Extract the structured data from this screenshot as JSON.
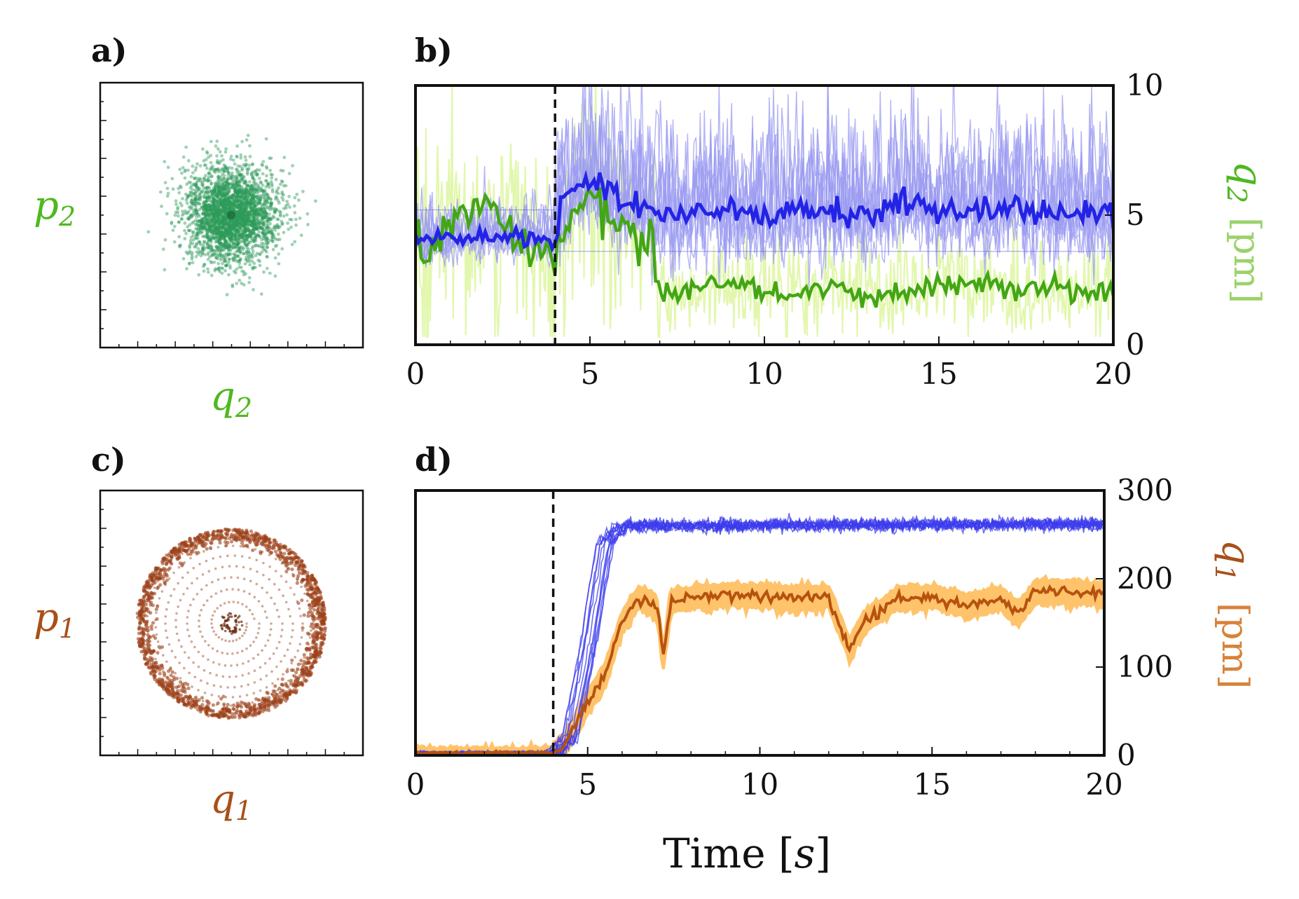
{
  "chart_data": [
    {
      "panel": "a)",
      "type": "scatter",
      "title": "",
      "xlabel": "q2",
      "ylabel": "p2",
      "description_points": "gaussian cloud centered at origin",
      "colors": {
        "points": "#2e9a5a",
        "label": "#4fb81f"
      }
    },
    {
      "panel": "b)",
      "type": "line",
      "title": "",
      "xlabel": "",
      "ylabel": "q2 [pm]",
      "xlim": [
        0,
        20
      ],
      "ylim": [
        0,
        10
      ],
      "xticks": [
        "0",
        "5",
        "10",
        "15",
        "20"
      ],
      "yticks": [
        "0",
        "5",
        "10"
      ],
      "switch_time": 4,
      "series": [
        {
          "name": "blue mean",
          "color": "#2323e6",
          "x": [
            0,
            1,
            2,
            3,
            4,
            4.2,
            5,
            6,
            6.8,
            7,
            8,
            9,
            10,
            11,
            12,
            13,
            14,
            15,
            16,
            17,
            18,
            19,
            20
          ],
          "values": [
            4.0,
            4.1,
            4.2,
            4.1,
            4.0,
            5.8,
            6.4,
            5.6,
            5.2,
            5.0,
            5.1,
            5.3,
            5.0,
            5.2,
            5.1,
            5.0,
            5.6,
            5.2,
            5.1,
            5.3,
            5.2,
            5.0,
            5.1
          ]
        },
        {
          "name": "green mean",
          "color": "#43a614",
          "x": [
            0,
            1,
            2,
            3,
            4,
            4.2,
            5,
            5.5,
            6,
            6.5,
            6.8,
            7,
            8,
            9,
            10,
            11,
            12,
            13,
            14,
            15,
            16,
            17,
            18,
            19,
            20
          ],
          "values": [
            3.5,
            4.5,
            5.5,
            3.8,
            3.3,
            4.2,
            5.8,
            5.0,
            4.4,
            4.0,
            4.6,
            1.9,
            2.1,
            2.3,
            2.1,
            2.0,
            2.2,
            1.9,
            2.1,
            2.3,
            2.4,
            2.1,
            2.2,
            2.0,
            2.0
          ]
        },
        {
          "name": "blue trajectories",
          "color": "#9b9bf2"
        },
        {
          "name": "green raw",
          "color": "#e2f7ad"
        }
      ]
    },
    {
      "panel": "c)",
      "type": "scatter",
      "title": "",
      "xlabel": "q1",
      "ylabel": "p1",
      "description_points": "spiral converging to a ring (limit cycle)",
      "colors": {
        "points": "#9c4119",
        "label": "#a8501a"
      }
    },
    {
      "panel": "d)",
      "type": "line",
      "title": "",
      "xlabel": "Time [s]",
      "ylabel": "q1 [pm]",
      "xlim": [
        0,
        20
      ],
      "ylim": [
        0,
        300
      ],
      "xticks": [
        "0",
        "5",
        "10",
        "15",
        "20"
      ],
      "yticks": [
        "0",
        "100",
        "200",
        "300"
      ],
      "switch_time": 4,
      "series": [
        {
          "name": "blue trajectories",
          "color": "#3c3cee",
          "x": [
            0,
            4,
            4.5,
            5,
            5.5,
            6,
            20
          ],
          "values": [
            3,
            3,
            20,
            120,
            240,
            260,
            262
          ]
        },
        {
          "name": "orange mean",
          "color": "#b6520f",
          "x": [
            0,
            4,
            4.3,
            5,
            5.5,
            6,
            6.5,
            7,
            7.2,
            7.4,
            8,
            9,
            10,
            11,
            12,
            12.6,
            13,
            14,
            15,
            16,
            17,
            17.5,
            18,
            19,
            20
          ],
          "values": [
            3,
            3,
            10,
            60,
            90,
            150,
            180,
            170,
            110,
            175,
            178,
            182,
            180,
            178,
            180,
            120,
            150,
            178,
            180,
            170,
            178,
            160,
            185,
            186,
            182
          ]
        },
        {
          "name": "orange band",
          "color": "#ffc36b"
        }
      ]
    }
  ],
  "labels": {
    "panel_a": "a)",
    "panel_b": "b)",
    "panel_c": "c)",
    "panel_d": "d)",
    "a_xlabel_sym": "q",
    "a_xlabel_sub": "2",
    "a_ylabel_sym": "p",
    "a_ylabel_sub": "2",
    "c_xlabel_sym": "q",
    "c_xlabel_sub": "1",
    "c_ylabel_sym": "p",
    "c_ylabel_sub": "1",
    "b_ylabel_sym": "q",
    "b_ylabel_sub": "2",
    "b_unit": "[pm]",
    "d_ylabel_sym": "q",
    "d_ylabel_sub": "1",
    "d_unit": "[pm]",
    "time_title_prefix": "Time [",
    "time_title_var": "s",
    "time_title_suffix": "]"
  }
}
